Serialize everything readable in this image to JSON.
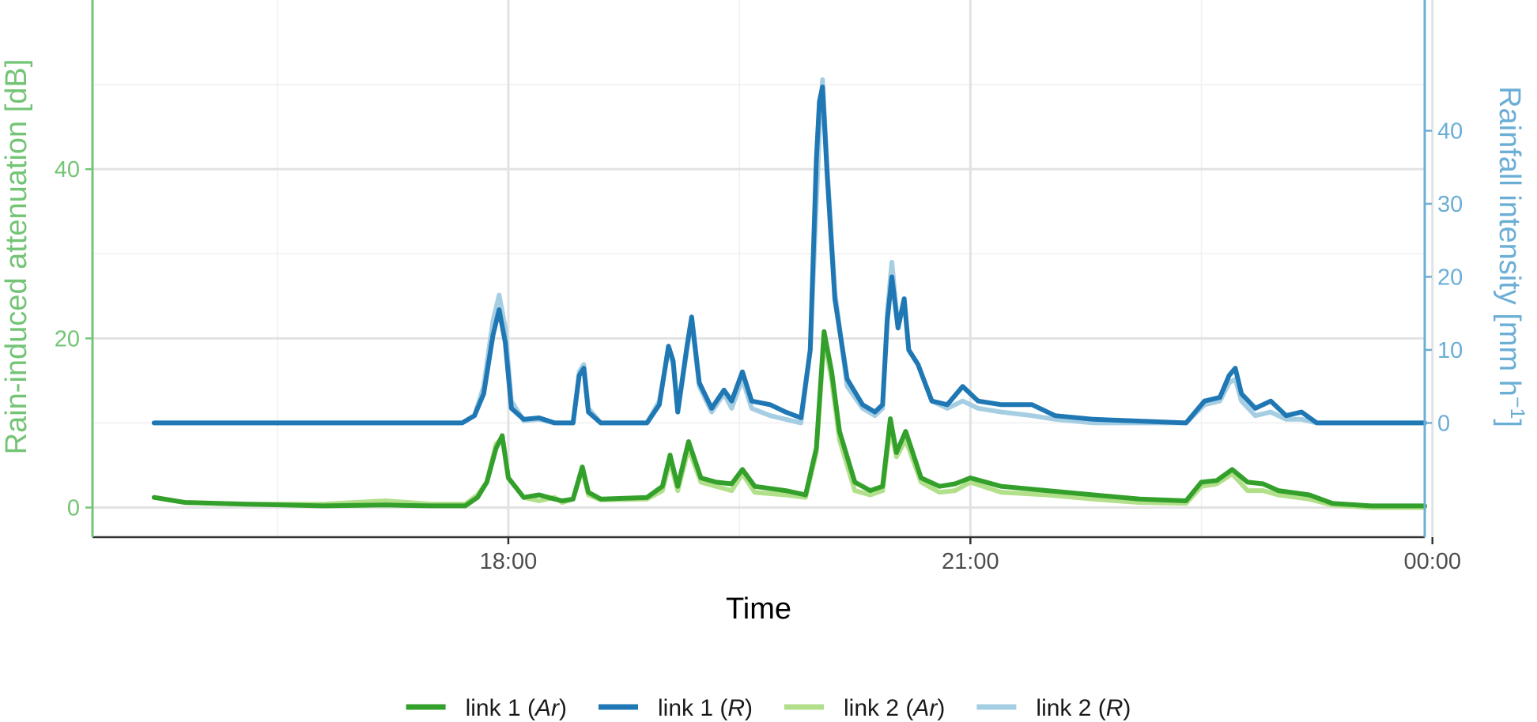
{
  "chart_data": {
    "type": "line",
    "xlabel": "Time",
    "ylabel_left": "Rain-induced attenuation [dB]",
    "ylabel_right": "Rainfall intensity [mm h",
    "ylabel_right_sup": "−1",
    "ylabel_right_end": "]",
    "x_unit": "hours since 00:00 of the day (15.5 = 15:30)",
    "xlim": [
      15.3,
      23.95
    ],
    "x_ticks": [
      {
        "x": 18,
        "label": "18:00"
      },
      {
        "x": 21,
        "label": "21:00"
      },
      {
        "x": 24,
        "label": "00:00"
      }
    ],
    "x_minor_ticks": [
      16.5,
      19.5,
      22.5
    ],
    "ylim_left": [
      -3.5,
      60
    ],
    "y_ticks_left": [
      {
        "y": 0,
        "label": "0"
      },
      {
        "y": 20,
        "label": "20"
      },
      {
        "y": 40,
        "label": "40"
      }
    ],
    "y_minor_ticks_left": [
      10,
      30,
      50
    ],
    "right_axis": {
      "y_ticks": [
        {
          "y": 0,
          "label": "0"
        },
        {
          "y": 10,
          "label": "10"
        },
        {
          "y": 20,
          "label": "20"
        },
        {
          "y": 30,
          "label": "30"
        },
        {
          "y": 40,
          "label": "40"
        }
      ]
    },
    "grid": true,
    "legend_position": "bottom",
    "colors": {
      "link1_Ar": "#33a02c",
      "link1_R": "#1f78b4",
      "link2_Ar": "#b2df8a",
      "link2_R": "#a6cee3",
      "left_axis": "#74c476",
      "right_axis": "#6baed6"
    },
    "series": [
      {
        "key": "link2_Ar",
        "name_prefix": "link 2 (",
        "name_var": "Ar",
        "name_suffix": ")",
        "axis": "left",
        "color": "#b2df8a",
        "points": [
          [
            15.7,
            1.2
          ],
          [
            15.9,
            0.6
          ],
          [
            16.3,
            0.4
          ],
          [
            16.8,
            0.4
          ],
          [
            17.2,
            0.8
          ],
          [
            17.5,
            0.4
          ],
          [
            17.72,
            0.4
          ],
          [
            17.8,
            1.5
          ],
          [
            17.86,
            3
          ],
          [
            17.92,
            7.5
          ],
          [
            17.96,
            8.2
          ],
          [
            18.0,
            3.5
          ],
          [
            18.1,
            1.2
          ],
          [
            18.2,
            0.8
          ],
          [
            18.3,
            1.2
          ],
          [
            18.35,
            0.6
          ],
          [
            18.42,
            1.0
          ],
          [
            18.48,
            4.5
          ],
          [
            18.52,
            1.5
          ],
          [
            18.6,
            0.9
          ],
          [
            18.9,
            1.0
          ],
          [
            19.0,
            2.0
          ],
          [
            19.05,
            5.5
          ],
          [
            19.1,
            2.0
          ],
          [
            19.17,
            7.0
          ],
          [
            19.25,
            3.0
          ],
          [
            19.35,
            2.5
          ],
          [
            19.45,
            2.0
          ],
          [
            19.52,
            4.0
          ],
          [
            19.6,
            1.8
          ],
          [
            19.8,
            1.5
          ],
          [
            19.93,
            1.2
          ],
          [
            20.0,
            6.5
          ],
          [
            20.05,
            20.0
          ],
          [
            20.1,
            15.0
          ],
          [
            20.15,
            8.0
          ],
          [
            20.25,
            2.0
          ],
          [
            20.35,
            1.5
          ],
          [
            20.43,
            2.0
          ],
          [
            20.48,
            9.5
          ],
          [
            20.52,
            6.0
          ],
          [
            20.58,
            8.0
          ],
          [
            20.68,
            3.0
          ],
          [
            20.8,
            1.8
          ],
          [
            20.9,
            2.0
          ],
          [
            21.0,
            3.0
          ],
          [
            21.2,
            1.8
          ],
          [
            21.5,
            1.5
          ],
          [
            21.8,
            1.0
          ],
          [
            22.1,
            0.6
          ],
          [
            22.4,
            0.5
          ],
          [
            22.5,
            2.5
          ],
          [
            22.6,
            2.8
          ],
          [
            22.7,
            4.0
          ],
          [
            22.8,
            2.0
          ],
          [
            22.9,
            2.0
          ],
          [
            23.0,
            1.5
          ],
          [
            23.2,
            1.0
          ],
          [
            23.35,
            0.3
          ],
          [
            23.6,
            0.0
          ],
          [
            23.95,
            0.0
          ]
        ]
      },
      {
        "key": "link1_Ar",
        "name_prefix": "link 1 (",
        "name_var": "Ar",
        "name_suffix": ")",
        "axis": "left",
        "color": "#33a02c",
        "points": [
          [
            15.7,
            1.2
          ],
          [
            15.9,
            0.6
          ],
          [
            16.3,
            0.4
          ],
          [
            16.8,
            0.2
          ],
          [
            17.2,
            0.3
          ],
          [
            17.5,
            0.2
          ],
          [
            17.72,
            0.2
          ],
          [
            17.8,
            1.2
          ],
          [
            17.86,
            3
          ],
          [
            17.92,
            7
          ],
          [
            17.96,
            8.5
          ],
          [
            18.0,
            3.5
          ],
          [
            18.1,
            1.2
          ],
          [
            18.2,
            1.5
          ],
          [
            18.3,
            1.0
          ],
          [
            18.35,
            0.8
          ],
          [
            18.42,
            1.0
          ],
          [
            18.48,
            4.8
          ],
          [
            18.52,
            1.8
          ],
          [
            18.6,
            1.0
          ],
          [
            18.9,
            1.2
          ],
          [
            19.0,
            2.5
          ],
          [
            19.05,
            6.2
          ],
          [
            19.1,
            2.5
          ],
          [
            19.17,
            7.8
          ],
          [
            19.25,
            3.5
          ],
          [
            19.35,
            3.0
          ],
          [
            19.45,
            2.8
          ],
          [
            19.52,
            4.5
          ],
          [
            19.6,
            2.5
          ],
          [
            19.8,
            2.0
          ],
          [
            19.93,
            1.5
          ],
          [
            20.0,
            7.0
          ],
          [
            20.05,
            20.8
          ],
          [
            20.1,
            16.0
          ],
          [
            20.15,
            9.0
          ],
          [
            20.25,
            3.0
          ],
          [
            20.35,
            2.0
          ],
          [
            20.43,
            2.5
          ],
          [
            20.48,
            10.5
          ],
          [
            20.52,
            6.5
          ],
          [
            20.58,
            9.0
          ],
          [
            20.68,
            3.5
          ],
          [
            20.8,
            2.5
          ],
          [
            20.9,
            2.8
          ],
          [
            21.0,
            3.5
          ],
          [
            21.2,
            2.5
          ],
          [
            21.5,
            2.0
          ],
          [
            21.8,
            1.5
          ],
          [
            22.1,
            1.0
          ],
          [
            22.4,
            0.8
          ],
          [
            22.5,
            3.0
          ],
          [
            22.6,
            3.2
          ],
          [
            22.7,
            4.5
          ],
          [
            22.8,
            3.0
          ],
          [
            22.9,
            2.8
          ],
          [
            23.0,
            2.0
          ],
          [
            23.2,
            1.5
          ],
          [
            23.35,
            0.5
          ],
          [
            23.6,
            0.2
          ],
          [
            23.95,
            0.2
          ]
        ]
      },
      {
        "key": "link2_R",
        "name_prefix": "link 2 (",
        "name_var": "R",
        "name_suffix": ")",
        "axis": "right",
        "color": "#a6cee3",
        "points": [
          [
            15.7,
            0.0
          ],
          [
            17.7,
            0.0
          ],
          [
            17.78,
            1.0
          ],
          [
            17.84,
            5.0
          ],
          [
            17.9,
            14.0
          ],
          [
            17.94,
            17.5
          ],
          [
            17.98,
            13.0
          ],
          [
            18.02,
            3.0
          ],
          [
            18.1,
            0.3
          ],
          [
            18.2,
            0.5
          ],
          [
            18.3,
            0.0
          ],
          [
            18.42,
            0.0
          ],
          [
            18.46,
            7.0
          ],
          [
            18.49,
            8.0
          ],
          [
            18.52,
            2.0
          ],
          [
            18.6,
            0.0
          ],
          [
            18.9,
            0.0
          ],
          [
            18.98,
            3.0
          ],
          [
            19.04,
            10.0
          ],
          [
            19.07,
            8.0
          ],
          [
            19.1,
            1.5
          ],
          [
            19.16,
            10.0
          ],
          [
            19.19,
            14.0
          ],
          [
            19.24,
            5.0
          ],
          [
            19.32,
            1.5
          ],
          [
            19.4,
            4.0
          ],
          [
            19.45,
            2.0
          ],
          [
            19.52,
            6.0
          ],
          [
            19.58,
            2.0
          ],
          [
            19.7,
            1.0
          ],
          [
            19.8,
            0.5
          ],
          [
            19.9,
            0.0
          ],
          [
            19.96,
            10.0
          ],
          [
            20.02,
            40.0
          ],
          [
            20.04,
            47.0
          ],
          [
            20.07,
            35.0
          ],
          [
            20.12,
            18.0
          ],
          [
            20.2,
            5.0
          ],
          [
            20.3,
            2.0
          ],
          [
            20.38,
            1.0
          ],
          [
            20.43,
            2.0
          ],
          [
            20.46,
            15.0
          ],
          [
            20.49,
            22.0
          ],
          [
            20.53,
            13.0
          ],
          [
            20.57,
            17.0
          ],
          [
            20.6,
            10.0
          ],
          [
            20.66,
            8.0
          ],
          [
            20.75,
            3.0
          ],
          [
            20.85,
            2.0
          ],
          [
            20.95,
            3.0
          ],
          [
            21.05,
            2.0
          ],
          [
            21.2,
            1.5
          ],
          [
            21.4,
            1.0
          ],
          [
            21.55,
            0.5
          ],
          [
            21.8,
            0.0
          ],
          [
            22.4,
            0.0
          ],
          [
            22.52,
            2.5
          ],
          [
            22.62,
            3.0
          ],
          [
            22.68,
            5.5
          ],
          [
            22.72,
            6.0
          ],
          [
            22.76,
            3.0
          ],
          [
            22.85,
            1.0
          ],
          [
            22.95,
            1.5
          ],
          [
            23.05,
            0.5
          ],
          [
            23.15,
            0.5
          ],
          [
            23.25,
            0.0
          ],
          [
            23.95,
            0.0
          ]
        ]
      },
      {
        "key": "link1_R",
        "name_prefix": "link 1 (",
        "name_var": "R",
        "name_suffix": ")",
        "axis": "right",
        "color": "#1f78b4",
        "points": [
          [
            15.7,
            0.0
          ],
          [
            17.7,
            0.0
          ],
          [
            17.78,
            1.0
          ],
          [
            17.84,
            4.0
          ],
          [
            17.9,
            12.0
          ],
          [
            17.94,
            15.5
          ],
          [
            17.98,
            11.0
          ],
          [
            18.02,
            2.0
          ],
          [
            18.1,
            0.5
          ],
          [
            18.2,
            0.7
          ],
          [
            18.3,
            0.0
          ],
          [
            18.42,
            0.0
          ],
          [
            18.46,
            6.5
          ],
          [
            18.49,
            7.5
          ],
          [
            18.52,
            1.5
          ],
          [
            18.6,
            0.0
          ],
          [
            18.9,
            0.0
          ],
          [
            18.98,
            2.5
          ],
          [
            19.04,
            10.5
          ],
          [
            19.07,
            8.5
          ],
          [
            19.1,
            1.5
          ],
          [
            19.16,
            10.5
          ],
          [
            19.19,
            14.5
          ],
          [
            19.24,
            5.5
          ],
          [
            19.32,
            2.0
          ],
          [
            19.4,
            4.5
          ],
          [
            19.45,
            3.0
          ],
          [
            19.52,
            7.0
          ],
          [
            19.58,
            3.0
          ],
          [
            19.7,
            2.5
          ],
          [
            19.8,
            1.5
          ],
          [
            19.9,
            0.7
          ],
          [
            19.96,
            10.0
          ],
          [
            20.0,
            36.0
          ],
          [
            20.02,
            44.0
          ],
          [
            20.04,
            46.0
          ],
          [
            20.07,
            34.0
          ],
          [
            20.12,
            17.0
          ],
          [
            20.2,
            6.0
          ],
          [
            20.3,
            2.5
          ],
          [
            20.38,
            1.5
          ],
          [
            20.43,
            2.5
          ],
          [
            20.46,
            14.0
          ],
          [
            20.49,
            20.0
          ],
          [
            20.53,
            13.0
          ],
          [
            20.57,
            17.0
          ],
          [
            20.6,
            10.0
          ],
          [
            20.66,
            8.0
          ],
          [
            20.75,
            3.0
          ],
          [
            20.85,
            2.5
          ],
          [
            20.95,
            5.0
          ],
          [
            21.05,
            3.0
          ],
          [
            21.2,
            2.5
          ],
          [
            21.4,
            2.5
          ],
          [
            21.55,
            1.0
          ],
          [
            21.8,
            0.5
          ],
          [
            22.4,
            0.0
          ],
          [
            22.52,
            3.0
          ],
          [
            22.62,
            3.5
          ],
          [
            22.68,
            6.5
          ],
          [
            22.72,
            7.5
          ],
          [
            22.76,
            4.0
          ],
          [
            22.85,
            2.0
          ],
          [
            22.95,
            3.0
          ],
          [
            23.05,
            1.0
          ],
          [
            23.15,
            1.5
          ],
          [
            23.25,
            0.0
          ],
          [
            23.95,
            0.0
          ]
        ]
      }
    ],
    "legend_order": [
      "link1_Ar",
      "link1_R",
      "link2_Ar",
      "link2_R"
    ]
  }
}
